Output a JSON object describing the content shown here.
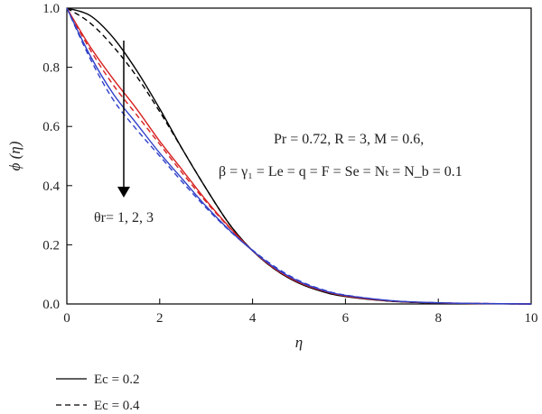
{
  "chart_data": {
    "type": "line",
    "xlabel": "η",
    "ylabel": "ϕ (η)",
    "xlim": [
      0,
      10
    ],
    "ylim": [
      0,
      1
    ],
    "xticks": [
      "0",
      "2",
      "4",
      "6",
      "8",
      "10"
    ],
    "yticks": [
      "0.0",
      "0.2",
      "0.4",
      "0.6",
      "0.8",
      "1.0"
    ],
    "grid": false,
    "x": [
      0,
      0.5,
      1,
      1.5,
      2,
      2.5,
      3,
      3.5,
      4,
      4.5,
      5,
      5.5,
      6,
      7,
      8,
      9,
      10
    ],
    "series": [
      {
        "name": "Ec = 0.2",
        "color": "#000000",
        "dash": "solid",
        "values": [
          1.0,
          0.975,
          0.9,
          0.79,
          0.66,
          0.52,
          0.39,
          0.27,
          0.18,
          0.115,
          0.07,
          0.042,
          0.025,
          0.009,
          0.003,
          0.001,
          0.0
        ]
      },
      {
        "name": "Ec = 0.4",
        "color": "#000000",
        "dash": "dashed",
        "values": [
          1.0,
          0.95,
          0.87,
          0.77,
          0.65,
          0.52,
          0.39,
          0.27,
          0.18,
          0.115,
          0.071,
          0.043,
          0.026,
          0.009,
          0.003,
          0.001,
          0.0
        ]
      },
      {
        "color": "#d62020",
        "dash": "solid",
        "values": [
          1.0,
          0.87,
          0.76,
          0.66,
          0.55,
          0.45,
          0.35,
          0.26,
          0.18,
          0.117,
          0.073,
          0.045,
          0.027,
          0.01,
          0.0035,
          0.0012,
          0.0
        ]
      },
      {
        "color": "#d62020",
        "dash": "dashed",
        "values": [
          1.0,
          0.86,
          0.74,
          0.64,
          0.54,
          0.44,
          0.345,
          0.258,
          0.18,
          0.118,
          0.074,
          0.046,
          0.028,
          0.01,
          0.0036,
          0.0013,
          0.0
        ]
      },
      {
        "color": "#3040c8",
        "dash": "solid",
        "values": [
          1.0,
          0.84,
          0.71,
          0.61,
          0.51,
          0.42,
          0.33,
          0.25,
          0.18,
          0.12,
          0.076,
          0.047,
          0.029,
          0.011,
          0.004,
          0.0014,
          0.0
        ]
      },
      {
        "color": "#3040c8",
        "dash": "dashed",
        "values": [
          1.0,
          0.83,
          0.69,
          0.59,
          0.5,
          0.41,
          0.325,
          0.248,
          0.182,
          0.124,
          0.079,
          0.049,
          0.03,
          0.011,
          0.004,
          0.0015,
          0.0
        ]
      }
    ],
    "annotations": {
      "params_line1": "Pr = 0.72, R = 3, M = 0.6,",
      "params_line2": "β = γ₁ = Le = q = F = Se = Nₜ = N_b = 0.1",
      "arrow_label": "θr= 1, 2, 3"
    },
    "legend": {
      "placement": "bottom-left",
      "entries": [
        "Ec = 0.2",
        "Ec = 0.4"
      ]
    }
  }
}
